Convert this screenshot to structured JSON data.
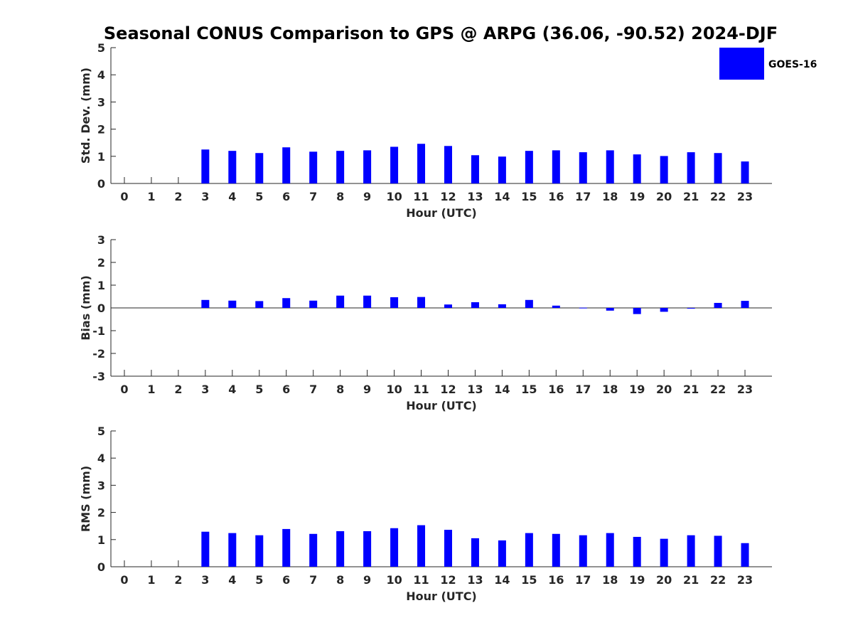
{
  "figure": {
    "title": "Seasonal CONUS Comparison to GPS @ ARPG (36.06, -90.52) 2024-DJF",
    "legend": {
      "label": "GOES-16",
      "color": "#0000ff"
    }
  },
  "chart_data": [
    {
      "type": "bar",
      "xlabel": "Hour (UTC)",
      "ylabel": "Std. Dev. (mm)",
      "ylim": [
        0,
        5
      ],
      "yticks": [
        0,
        1,
        2,
        3,
        4,
        5
      ],
      "categories": [
        "0",
        "1",
        "2",
        "3",
        "4",
        "5",
        "6",
        "7",
        "8",
        "9",
        "10",
        "11",
        "12",
        "13",
        "14",
        "15",
        "16",
        "17",
        "18",
        "19",
        "20",
        "21",
        "22",
        "23"
      ],
      "series": [
        {
          "name": "GOES-16",
          "color": "#0000ff",
          "values": [
            null,
            null,
            null,
            1.25,
            1.2,
            1.12,
            1.33,
            1.17,
            1.2,
            1.22,
            1.35,
            1.46,
            1.38,
            1.04,
            0.99,
            1.2,
            1.22,
            1.15,
            1.22,
            1.07,
            1.01,
            1.15,
            1.12,
            0.81
          ]
        }
      ],
      "legend": "top-right"
    },
    {
      "type": "bar",
      "xlabel": "Hour (UTC)",
      "ylabel": "Bias (mm)",
      "ylim": [
        -3,
        3
      ],
      "yticks": [
        -3,
        -2,
        -1,
        0,
        1,
        2,
        3
      ],
      "zero_line": true,
      "categories": [
        "0",
        "1",
        "2",
        "3",
        "4",
        "5",
        "6",
        "7",
        "8",
        "9",
        "10",
        "11",
        "12",
        "13",
        "14",
        "15",
        "16",
        "17",
        "18",
        "19",
        "20",
        "21",
        "22",
        "23"
      ],
      "series": [
        {
          "name": "GOES-16",
          "color": "#0000ff",
          "values": [
            null,
            null,
            null,
            0.35,
            0.32,
            0.3,
            0.43,
            0.32,
            0.54,
            0.54,
            0.47,
            0.48,
            0.15,
            0.25,
            0.16,
            0.35,
            0.1,
            0.01,
            -0.12,
            -0.27,
            -0.17,
            -0.01,
            0.22,
            0.31
          ]
        }
      ]
    },
    {
      "type": "bar",
      "xlabel": "Hour (UTC)",
      "ylabel": "RMS (mm)",
      "ylim": [
        0,
        5
      ],
      "yticks": [
        0,
        1,
        2,
        3,
        4,
        5
      ],
      "categories": [
        "0",
        "1",
        "2",
        "3",
        "4",
        "5",
        "6",
        "7",
        "8",
        "9",
        "10",
        "11",
        "12",
        "13",
        "14",
        "15",
        "16",
        "17",
        "18",
        "19",
        "20",
        "21",
        "22",
        "23"
      ],
      "series": [
        {
          "name": "GOES-16",
          "color": "#0000ff",
          "values": [
            null,
            null,
            null,
            1.29,
            1.24,
            1.16,
            1.39,
            1.21,
            1.31,
            1.31,
            1.42,
            1.53,
            1.36,
            1.05,
            0.97,
            1.24,
            1.21,
            1.16,
            1.24,
            1.1,
            1.03,
            1.16,
            1.14,
            0.87
          ]
        }
      ]
    }
  ]
}
